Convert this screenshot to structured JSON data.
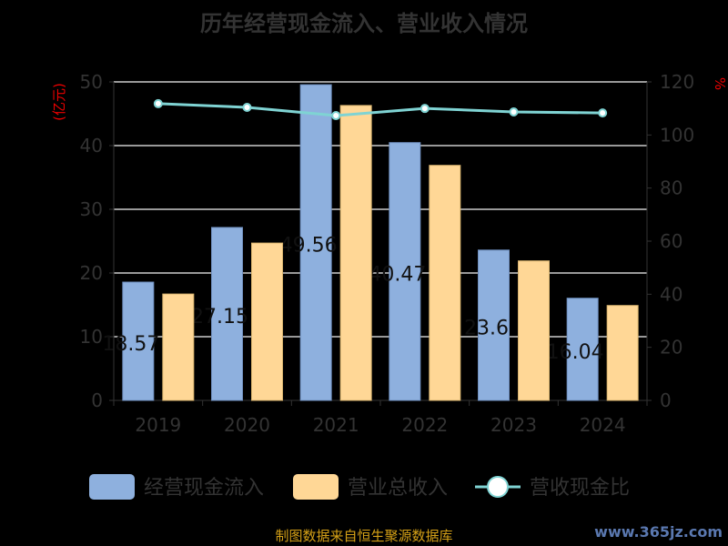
{
  "chart_data": {
    "type": "bar",
    "title": "历年经营现金流入、营业收入情况",
    "categories": [
      "2019",
      "2020",
      "2021",
      "2022",
      "2023",
      "2024"
    ],
    "series": [
      {
        "name": "经营现金流入",
        "type": "bar",
        "axis": "left",
        "color": "#8eb0de",
        "values": [
          18.57,
          27.15,
          49.56,
          40.47,
          23.6,
          16.04
        ],
        "labels": [
          "18.57",
          "27.15",
          "49.56",
          "40.47",
          "23.6",
          "16.04"
        ]
      },
      {
        "name": "营业总收入",
        "type": "bar",
        "axis": "left",
        "color": "#ffd796",
        "values": [
          16.7,
          24.7,
          46.3,
          36.9,
          21.9,
          14.9
        ]
      },
      {
        "name": "营收现金比",
        "type": "line",
        "axis": "right",
        "color": "#7fd3d3",
        "values": [
          111.8,
          110.4,
          107.3,
          110.0,
          108.7,
          108.3
        ]
      }
    ],
    "ylabel_left": "(亿元)",
    "ylabel_right": "%",
    "ylim_left": [
      0,
      50
    ],
    "yticks_left": [
      "0",
      "10",
      "20",
      "30",
      "40",
      "50"
    ],
    "ylim_right": [
      0,
      120
    ],
    "yticks_right": [
      "0",
      "20",
      "40",
      "60",
      "80",
      "100",
      "120"
    ],
    "grid": true,
    "legend": "bottom"
  },
  "source": "制图数据来自恒生聚源数据库",
  "watermark": "www.365jz.com"
}
